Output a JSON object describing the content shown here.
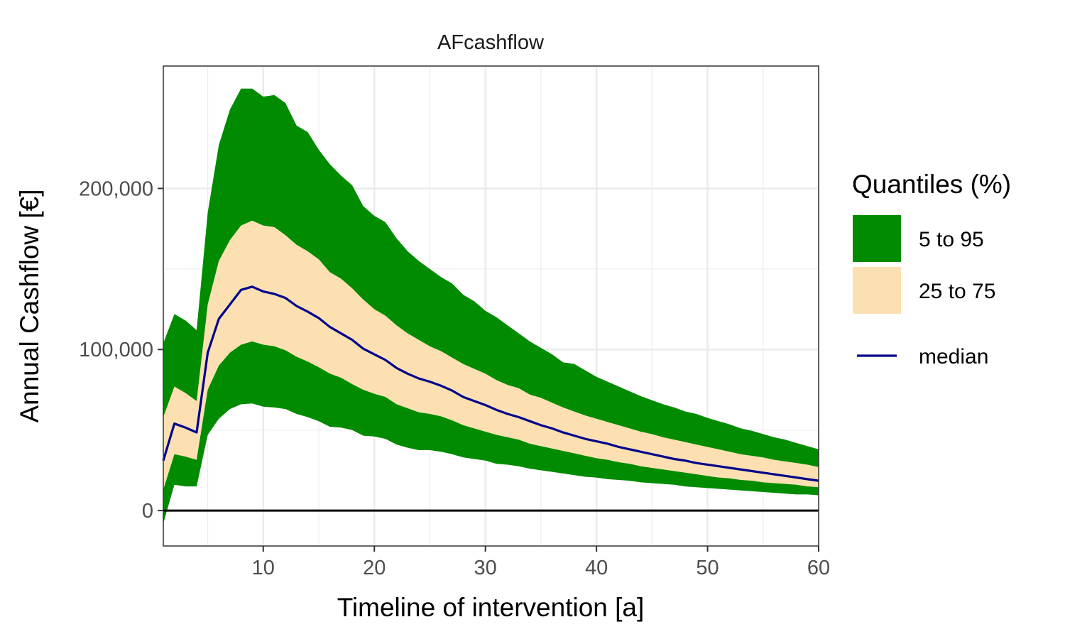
{
  "chart_data": {
    "type": "area",
    "title": "AFcashflow",
    "xlabel": "Timeline of intervention [a]",
    "ylabel": "Annual Cashflow [€]",
    "xlim": [
      1,
      60
    ],
    "ylim": [
      -22000,
      276000
    ],
    "x_ticks": [
      10,
      20,
      30,
      40,
      50,
      60
    ],
    "x_tick_labels": [
      "10",
      "20",
      "30",
      "40",
      "50",
      "60"
    ],
    "y_ticks": [
      0,
      100000,
      200000
    ],
    "y_tick_labels": [
      "0",
      "100,000",
      "200,000"
    ],
    "grid": true,
    "hline_y": 0,
    "legend": {
      "title": "Quantiles (%)",
      "position": "right",
      "entries": [
        {
          "label": "5 to 95",
          "kind": "band",
          "color": "#008B00"
        },
        {
          "label": "25 to 75",
          "kind": "band",
          "color": "#FCE0B2"
        },
        {
          "label": "median",
          "kind": "line",
          "color": "#00008B"
        }
      ]
    },
    "x": [
      1,
      2,
      3,
      4,
      5,
      6,
      7,
      8,
      9,
      10,
      11,
      12,
      13,
      14,
      15,
      16,
      17,
      18,
      19,
      20,
      21,
      22,
      23,
      24,
      25,
      26,
      27,
      28,
      29,
      30,
      31,
      32,
      33,
      34,
      35,
      36,
      37,
      38,
      39,
      40,
      41,
      42,
      43,
      44,
      45,
      46,
      47,
      48,
      49,
      50,
      51,
      52,
      53,
      54,
      55,
      56,
      57,
      58,
      59,
      60
    ],
    "series": [
      {
        "name": "5 to 95",
        "kind": "band",
        "color": "#008B00",
        "lower": [
          -8000,
          16000,
          15000,
          15000,
          47000,
          57000,
          63000,
          66000,
          66500,
          64500,
          64000,
          63000,
          60000,
          58000,
          55500,
          52000,
          51500,
          50000,
          46500,
          46000,
          44500,
          41000,
          39000,
          37500,
          37500,
          36500,
          35000,
          33000,
          32000,
          31000,
          29000,
          28500,
          27500,
          26000,
          25000,
          24000,
          23000,
          22000,
          21000,
          20500,
          19500,
          19000,
          18500,
          17500,
          17000,
          16500,
          16000,
          15000,
          14500,
          14000,
          13500,
          13000,
          12500,
          12000,
          11500,
          11000,
          10500,
          10000,
          10000,
          9500
        ],
        "upper": [
          104000,
          122000,
          118000,
          112000,
          185000,
          227000,
          249000,
          262000,
          262000,
          257000,
          258000,
          253000,
          239000,
          235000,
          224000,
          215000,
          208000,
          202000,
          189000,
          183000,
          179000,
          169000,
          161000,
          155000,
          150000,
          145000,
          141000,
          134000,
          130000,
          124000,
          120000,
          115000,
          110000,
          105000,
          101000,
          97000,
          92000,
          91000,
          87000,
          83000,
          80000,
          77000,
          74000,
          71000,
          68500,
          66000,
          64000,
          61500,
          60000,
          57500,
          55500,
          53500,
          51000,
          49500,
          47500,
          45500,
          44000,
          42000,
          40000,
          38000
        ]
      },
      {
        "name": "25 to 75",
        "kind": "band",
        "color": "#FCE0B2",
        "lower": [
          13000,
          35000,
          33500,
          31500,
          75000,
          90000,
          98000,
          103000,
          105000,
          103000,
          102000,
          99500,
          95500,
          92500,
          89000,
          85000,
          82500,
          78500,
          75000,
          72500,
          70500,
          66000,
          63500,
          61000,
          60000,
          58500,
          56000,
          53000,
          51000,
          49000,
          47000,
          45500,
          44000,
          41500,
          40000,
          38500,
          37000,
          35500,
          34000,
          32500,
          31500,
          30000,
          29000,
          27500,
          26500,
          25500,
          24500,
          23500,
          22500,
          21500,
          20500,
          20000,
          19000,
          18500,
          17500,
          17000,
          16500,
          16000,
          15000,
          14500
        ],
        "upper": [
          58000,
          77000,
          73000,
          68000,
          128000,
          155000,
          168000,
          177000,
          180000,
          177000,
          176000,
          171000,
          165000,
          161000,
          156000,
          148000,
          144000,
          138000,
          131000,
          125000,
          121000,
          115000,
          110000,
          106000,
          102000,
          99000,
          95000,
          91000,
          88000,
          85000,
          81000,
          78000,
          76000,
          72000,
          70000,
          67000,
          64000,
          61500,
          59000,
          57000,
          55000,
          53000,
          51000,
          49000,
          47500,
          45500,
          44000,
          42500,
          41000,
          39500,
          38000,
          36500,
          35000,
          34000,
          33000,
          31500,
          30500,
          29500,
          28500,
          27000
        ]
      },
      {
        "name": "median",
        "kind": "line",
        "color": "#00008B",
        "values": [
          31000,
          54000,
          51500,
          48500,
          98000,
          119000,
          128000,
          137000,
          139000,
          136000,
          134500,
          132000,
          127000,
          123500,
          119500,
          114000,
          110000,
          106000,
          100500,
          97000,
          93500,
          88500,
          85000,
          82000,
          80000,
          77500,
          74500,
          70500,
          68000,
          65500,
          62500,
          60000,
          58000,
          55500,
          53000,
          51000,
          48500,
          46500,
          44500,
          43000,
          41500,
          39500,
          38000,
          36500,
          35000,
          33500,
          32000,
          31000,
          29500,
          28500,
          27500,
          26500,
          25500,
          24500,
          23500,
          22500,
          21500,
          20500,
          19500,
          18500
        ]
      }
    ]
  }
}
